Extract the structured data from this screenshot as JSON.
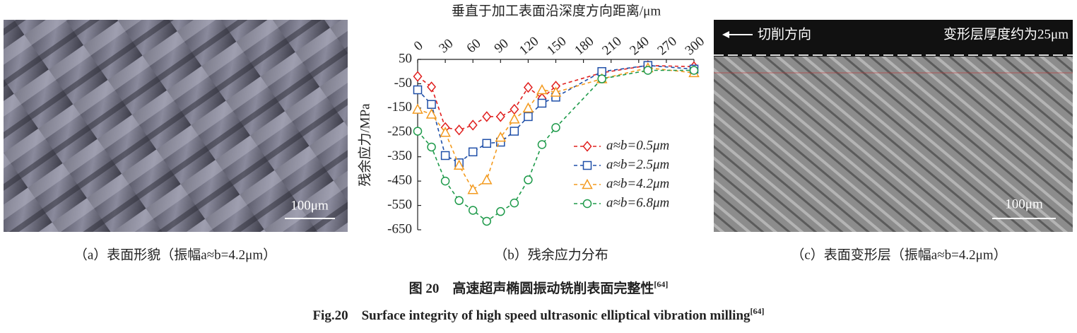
{
  "panels": [
    {
      "caption": "（a）表面形貌（振幅a≈b=4.2μm）",
      "scale_bar": "100μm"
    },
    {
      "caption": "（b）残余应力分布"
    },
    {
      "caption": "（c）表面变形层（振幅a≈b=4.2μm）",
      "scale_bar": "100μm",
      "direction": "切削方向",
      "layer_note": "变形层厚度约为25μm"
    }
  ],
  "figure": {
    "caption_cn": "图 20　高速超声椭圆振动铣削表面完整性",
    "ref_cn": "[64]",
    "caption_en": "Fig.20　Surface integrity of high speed ultrasonic elliptical vibration milling",
    "ref_en": "[64]"
  },
  "chart_data": {
    "type": "line",
    "x_label": "垂直于加工表面沿深度方向距离/μm",
    "y_label": "残余应力/MPa",
    "x": [
      0,
      15,
      30,
      45,
      60,
      75,
      90,
      105,
      120,
      135,
      150,
      200,
      250,
      300
    ],
    "xlim": [
      0,
      300
    ],
    "xticks": [
      0,
      30,
      60,
      90,
      120,
      150,
      180,
      210,
      240,
      270,
      300
    ],
    "ylim": [
      -650,
      50
    ],
    "yticks": [
      50,
      -50,
      -150,
      -250,
      -350,
      -450,
      -550,
      -650
    ],
    "series": [
      {
        "name": "a≈b=0.5μm",
        "color": "#e0201f",
        "marker": "diamond",
        "values": [
          -20,
          -63,
          -230,
          -240,
          -220,
          -185,
          -185,
          -155,
          -65,
          -110,
          -60,
          -5,
          25,
          20
        ]
      },
      {
        "name": "a≈b=2.5μm",
        "color": "#1f4fa8",
        "marker": "square",
        "values": [
          -75,
          -135,
          -345,
          -375,
          -330,
          -295,
          -290,
          -245,
          -185,
          -130,
          -105,
          0,
          25,
          10
        ]
      },
      {
        "name": "a≈b=4.2μm",
        "color": "#f39a1e",
        "marker": "triangle",
        "values": [
          -155,
          -175,
          -250,
          -385,
          -485,
          -445,
          -270,
          -195,
          -150,
          -75,
          -85,
          -30,
          15,
          -5
        ]
      },
      {
        "name": "a≈b=6.8μm",
        "color": "#1e9a4a",
        "marker": "circle",
        "values": [
          -245,
          -310,
          -450,
          -530,
          -570,
          -615,
          -575,
          -540,
          -445,
          -300,
          -230,
          -30,
          5,
          5
        ]
      }
    ]
  }
}
